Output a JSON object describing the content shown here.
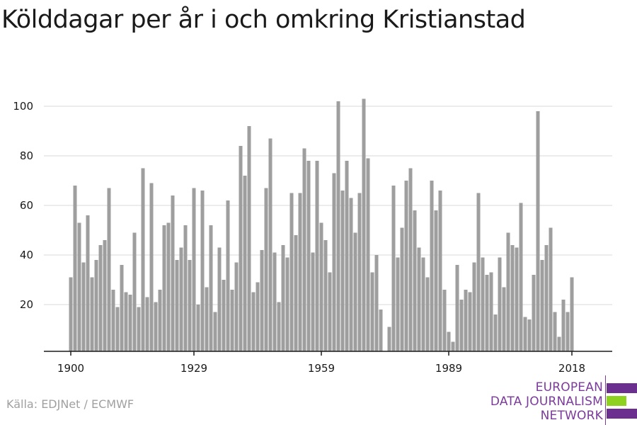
{
  "title": "Kölddagar per år i och omkring Kristianstad",
  "source": "Källa: EDJNet / ECMWF",
  "logo": {
    "lines": [
      "EUROPEAN",
      "DATA JOURNALISM",
      "NETWORK"
    ]
  },
  "colors": {
    "bar": "#9e9e9e",
    "grid": "#d9d9d9",
    "axis": "#1a1a1a",
    "logo_purple": "#6b2f8f",
    "logo_green": "#8fd11f"
  },
  "chart_data": {
    "type": "bar",
    "title": "Kölddagar per år i och omkring Kristianstad",
    "xlabel": "",
    "ylabel": "",
    "x_ticks": [
      1900,
      1929,
      1959,
      1989,
      2018
    ],
    "y_ticks": [
      20,
      40,
      60,
      80,
      100
    ],
    "ylim": [
      0,
      110
    ],
    "grid": true,
    "x_range": [
      1900,
      2021
    ],
    "categories": [
      1900,
      1901,
      1902,
      1903,
      1904,
      1905,
      1906,
      1907,
      1908,
      1909,
      1910,
      1911,
      1912,
      1913,
      1914,
      1915,
      1916,
      1917,
      1918,
      1919,
      1920,
      1921,
      1922,
      1923,
      1924,
      1925,
      1926,
      1927,
      1928,
      1929,
      1930,
      1931,
      1932,
      1933,
      1934,
      1935,
      1936,
      1937,
      1938,
      1939,
      1940,
      1941,
      1942,
      1943,
      1944,
      1945,
      1946,
      1947,
      1948,
      1949,
      1950,
      1951,
      1952,
      1953,
      1954,
      1955,
      1956,
      1957,
      1958,
      1959,
      1960,
      1961,
      1962,
      1963,
      1964,
      1965,
      1966,
      1967,
      1968,
      1969,
      1970,
      1971,
      1972,
      1973,
      1974,
      1975,
      1976,
      1977,
      1978,
      1979,
      1980,
      1981,
      1982,
      1983,
      1984,
      1985,
      1986,
      1987,
      1988,
      1989,
      1990,
      1991,
      1992,
      1993,
      1994,
      1995,
      1996,
      1997,
      1998,
      1999,
      2000,
      2001,
      2002,
      2003,
      2004,
      2005,
      2006,
      2007,
      2008,
      2009,
      2010,
      2011,
      2012,
      2013,
      2014,
      2015,
      2016,
      2017,
      2018,
      2019,
      2020,
      2021
    ],
    "values": [
      31,
      68,
      53,
      37,
      56,
      31,
      38,
      44,
      46,
      67,
      26,
      19,
      36,
      25,
      24,
      49,
      19,
      75,
      23,
      69,
      21,
      26,
      52,
      53,
      64,
      38,
      43,
      52,
      38,
      67,
      20,
      66,
      27,
      52,
      17,
      43,
      30,
      62,
      26,
      37,
      84,
      72,
      92,
      25,
      29,
      42,
      67,
      87,
      41,
      21,
      44,
      39,
      65,
      48,
      65,
      83,
      78,
      41,
      78,
      53,
      46,
      33,
      73,
      102,
      66,
      78,
      63,
      49,
      65,
      103,
      79,
      33,
      40,
      18,
      0,
      11,
      68,
      39,
      51,
      70,
      75,
      58,
      43,
      39,
      31,
      70,
      58,
      66,
      26,
      9,
      5,
      36,
      22,
      26,
      25,
      37,
      65,
      39,
      32,
      33,
      16,
      39,
      27,
      49,
      44,
      43,
      61,
      15,
      14,
      32,
      98,
      38,
      44,
      51,
      17,
      7,
      22,
      17,
      31,
      0,
      0,
      0
    ]
  }
}
